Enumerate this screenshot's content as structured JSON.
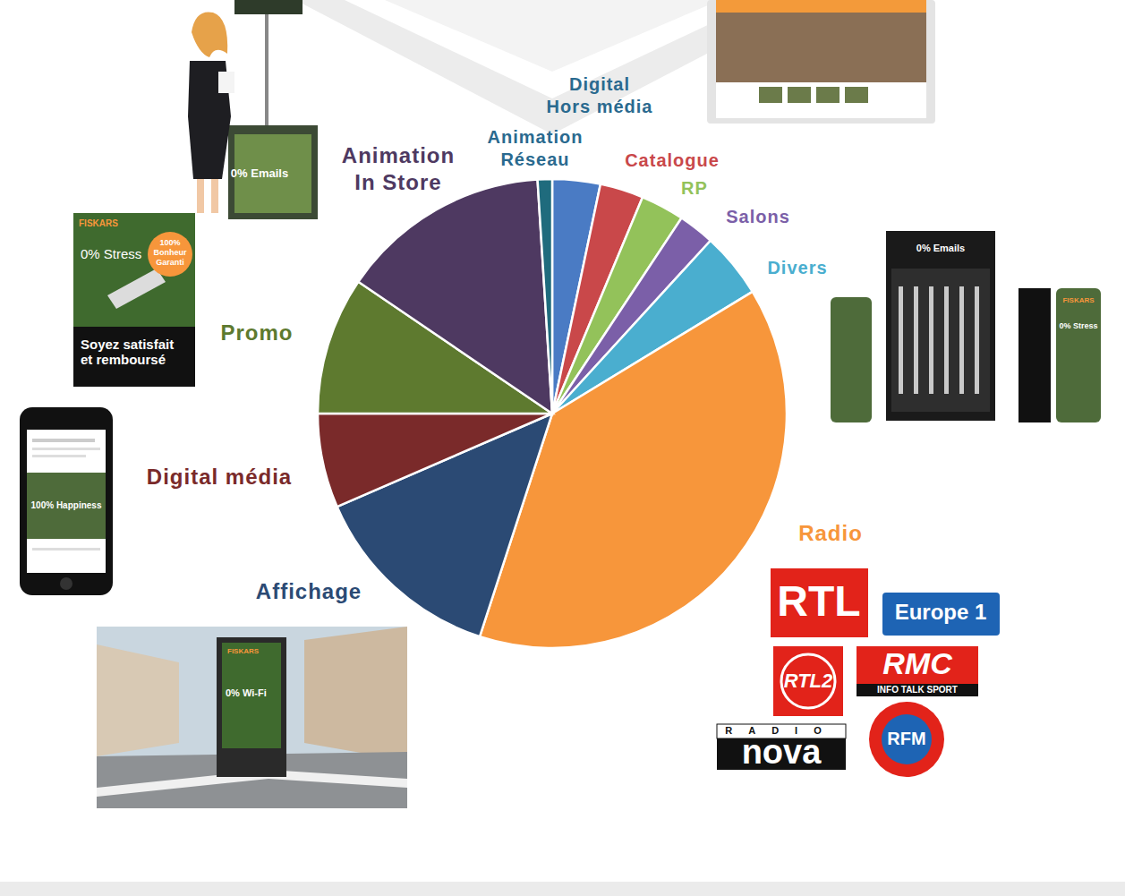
{
  "chart_data": {
    "type": "pie",
    "categories": [
      "Digital Hors média",
      "Catalogue",
      "RP",
      "Salons",
      "Divers",
      "Radio",
      "Affichage",
      "Digital média",
      "Promo",
      "Animation In Store",
      "Animation Réseau"
    ],
    "values": [
      3.3,
      3,
      3,
      2.5,
      4.5,
      38.7,
      13.5,
      6.5,
      9.5,
      14.5,
      1
    ],
    "colors": [
      "#4a7bc4",
      "#c9484a",
      "#93c25a",
      "#7b5fa8",
      "#4aaecf",
      "#f7963b",
      "#2b4a74",
      "#7a2a2a",
      "#5e7a2f",
      "#4e3961",
      "#1f6b7d"
    ]
  },
  "decorations": {
    "stand": "0% Emails",
    "promo_poster": {
      "brand": "FISKARS",
      "headline": "0% Stress",
      "badge": [
        "100%",
        "Bonheur",
        "Garanti"
      ],
      "footer": [
        "Soyez satisfait",
        "et remboursé"
      ]
    },
    "phone": "100% Happiness",
    "billboard": {
      "brand": "FISKARS",
      "headline": "0% Wi-Fi"
    },
    "display": {
      "brand": "FISKARS",
      "headline": "0% Stress",
      "side": "0% Emails"
    },
    "radio_logos": {
      "rtl": "RTL",
      "europe1": "Europe 1",
      "rtl2": "RTL2",
      "rmc": "RMC",
      "rmc_tagline": "INFO TALK SPORT",
      "nova_top": "RADIO",
      "nova": "nova",
      "rfm": "RFM"
    }
  }
}
